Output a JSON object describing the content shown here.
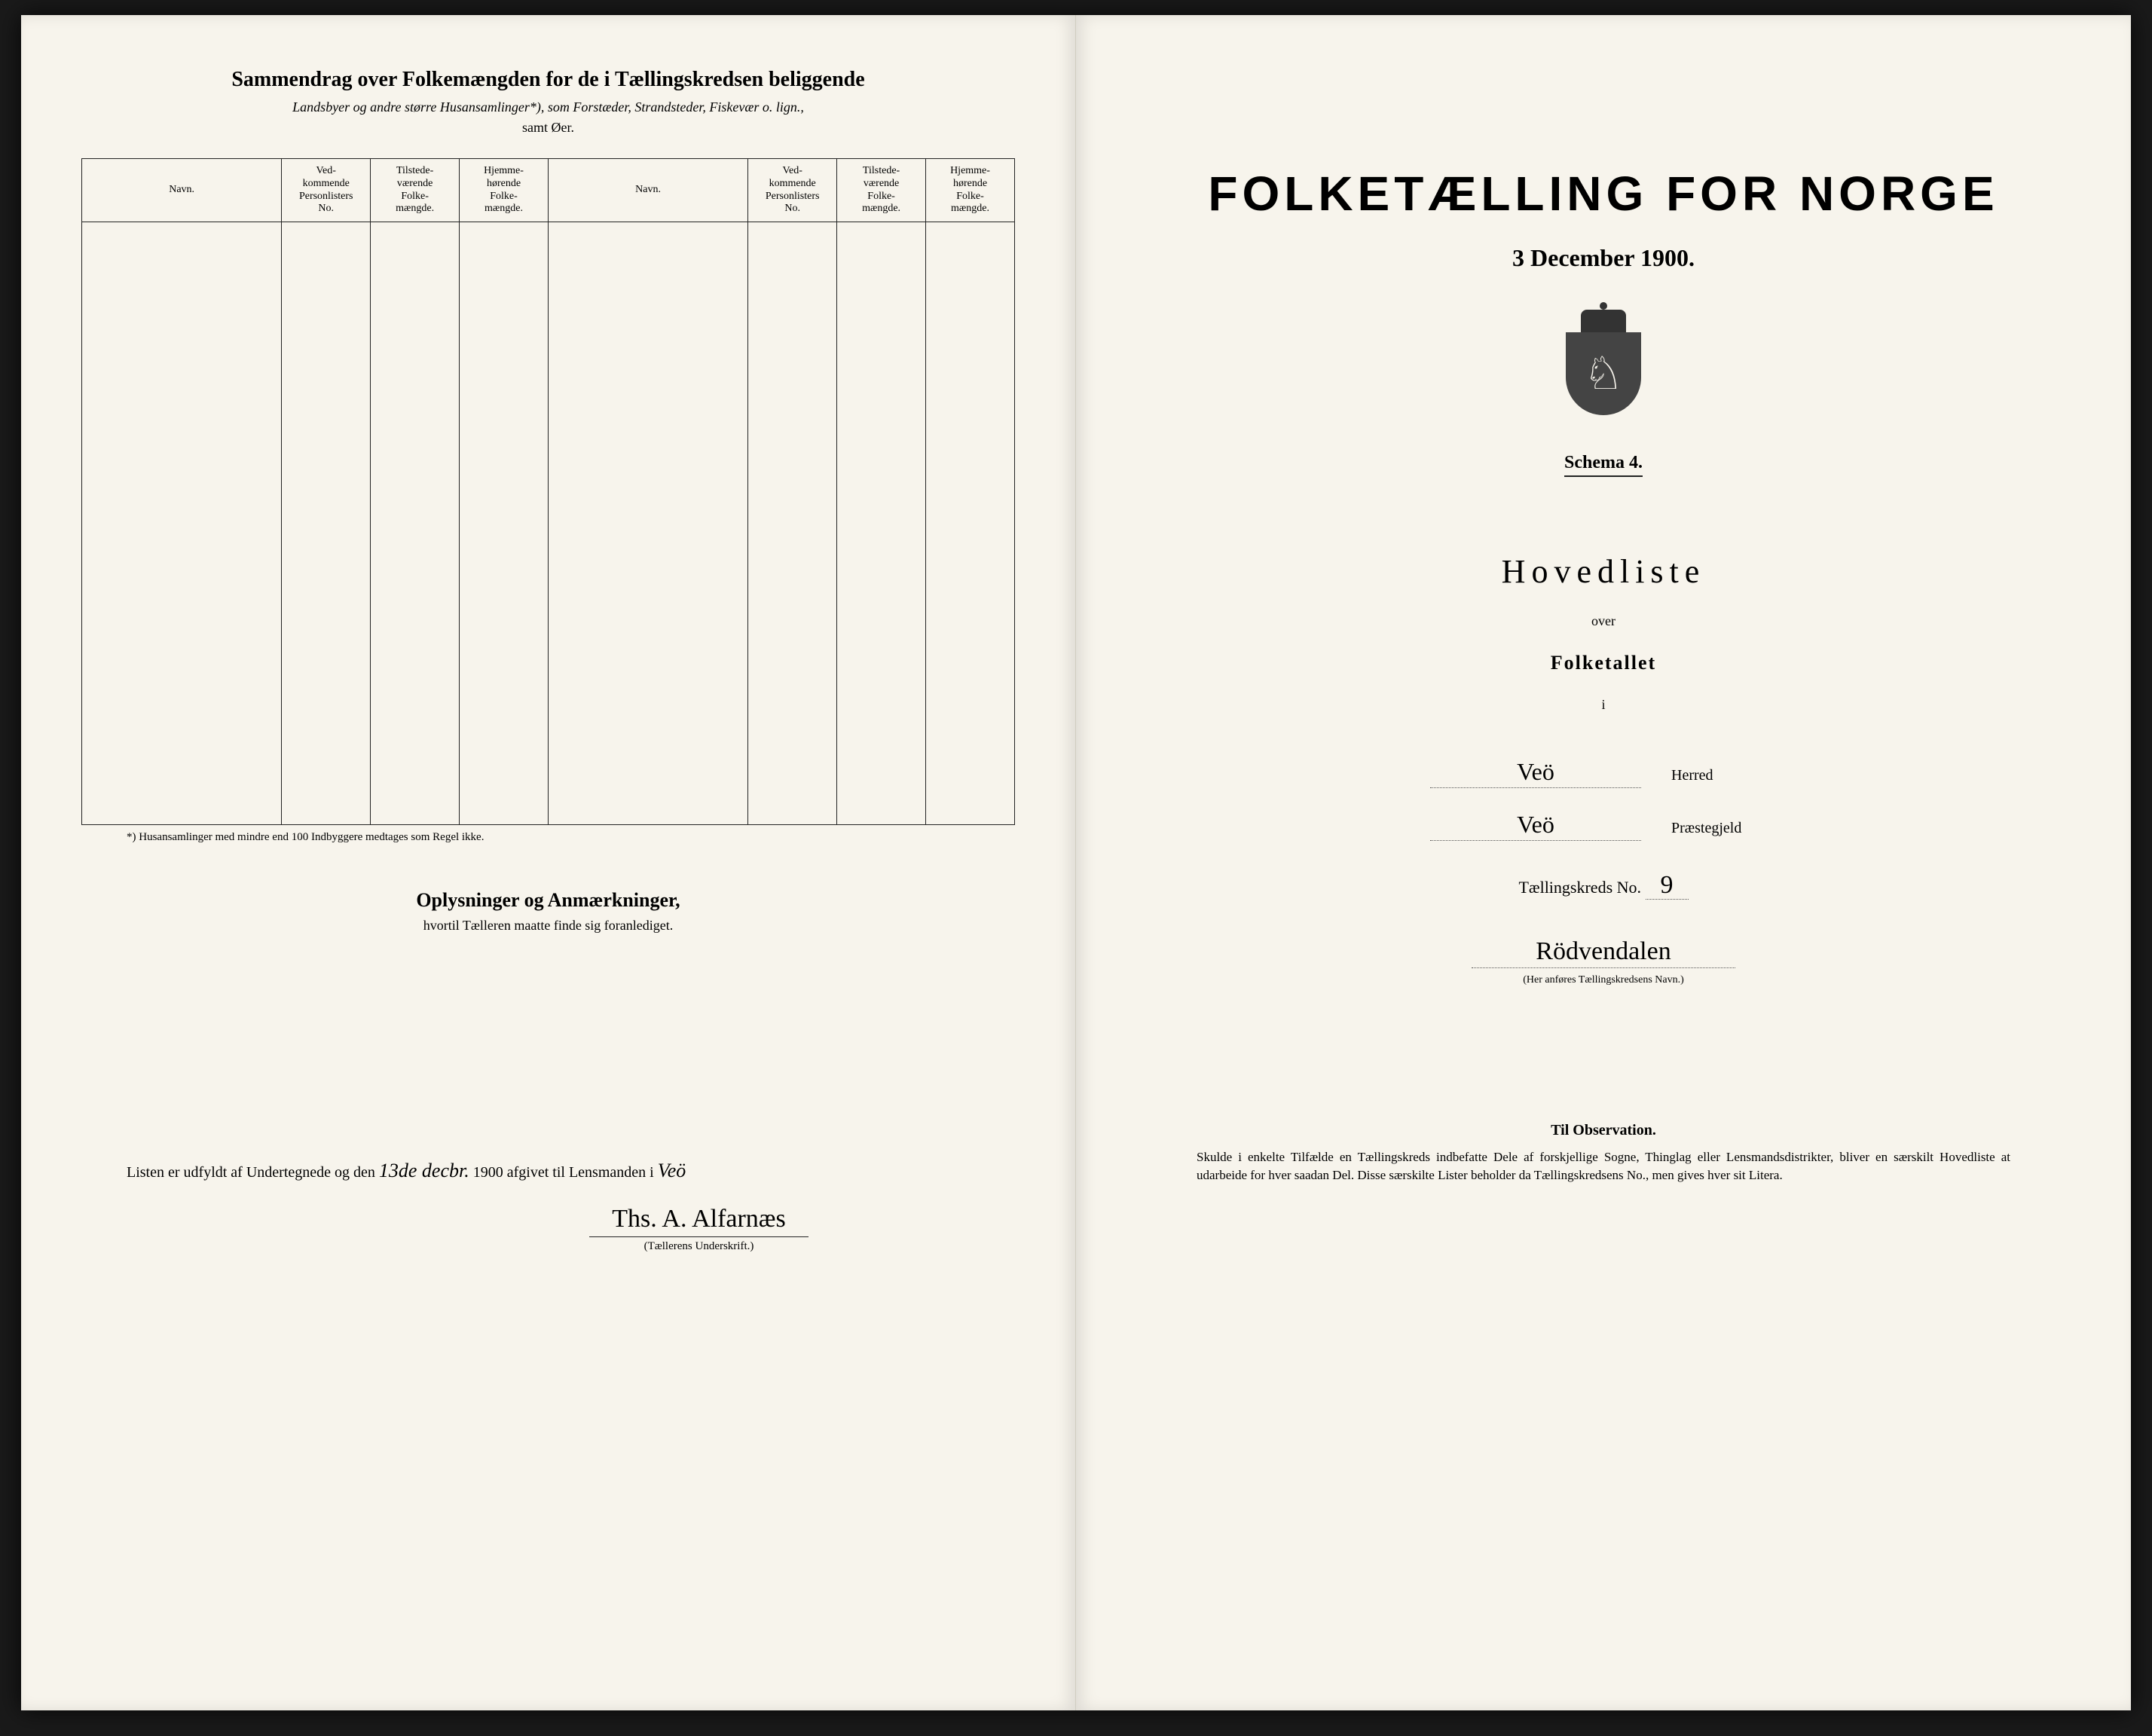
{
  "left": {
    "title": "Sammendrag over Folkemængden for de i Tællingskredsen beliggende",
    "subtitle": "Landsbyer og andre større Husansamlinger*), som Forstæder, Strandsteder, Fiskevær o. lign.,",
    "subtitle2": "samt Øer.",
    "columns": {
      "navn": "Navn.",
      "vedkommende": "Ved-\nkommende\nPersonlisters\nNo.",
      "tilstede": "Tilstede-\nværende\nFolke-\nmængde.",
      "hjemme": "Hjemme-\nhørende\nFolke-\nmængde."
    },
    "footnote": "*) Husansamlinger med mindre end 100 Indbyggere medtages som Regel ikke.",
    "oplysninger_title": "Oplysninger og Anmærkninger,",
    "oplysninger_sub": "hvortil Tælleren maatte finde sig foranlediget.",
    "sig_prefix": "Listen er udfyldt af Undertegnede og den",
    "sig_date": "13de decbr.",
    "sig_year": "1900",
    "sig_middle": "afgivet til Lensmanden i",
    "sig_place": "Veö",
    "signature": "Ths. A. Alfarnæs",
    "sig_label": "(Tællerens Underskrift.)"
  },
  "right": {
    "main_title": "FOLKETÆLLING FOR NORGE",
    "date": "3 December 1900.",
    "schema": "Schema 4.",
    "hovedliste": "Hovedliste",
    "over": "over",
    "folketallet": "Folketallet",
    "i": "i",
    "herred_value": "Veö",
    "herred_label": "Herred",
    "praeste_value": "Veö",
    "praeste_label": "Præstegjeld",
    "kreds_label": "Tællingskreds No.",
    "kreds_no": "9",
    "kreds_name": "Rödvendalen",
    "kreds_hint": "(Her anføres Tællingskredsens Navn.)",
    "obs_title": "Til Observation.",
    "obs_text": "Skulde i enkelte Tilfælde en Tællingskreds indbefatte Dele af forskjellige Sogne, Thinglag eller Lensmandsdistrikter, bliver en særskilt Hovedliste at udarbeide for hver saadan Del. Disse særskilte Lister beholder da Tællingskredsens No., men gives hver sit Litera."
  },
  "style": {
    "page_bg": "#f7f4ec",
    "text_color": "#1a1a1a",
    "rows": 10
  }
}
